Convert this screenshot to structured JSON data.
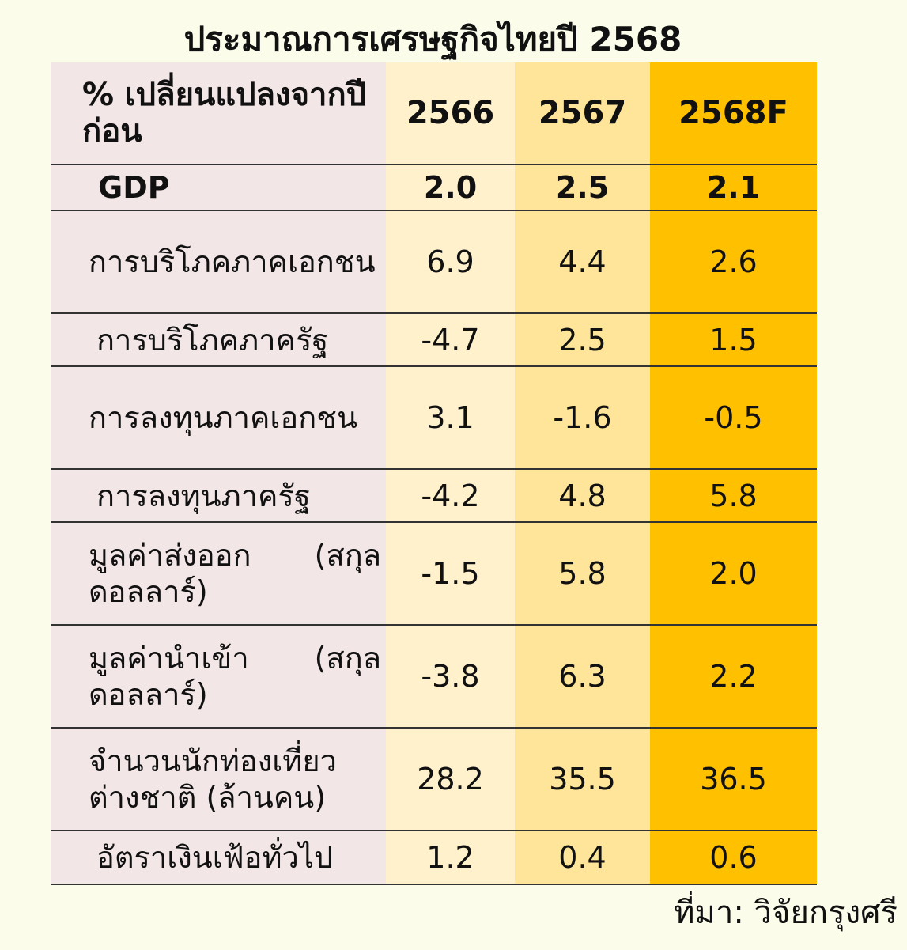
{
  "chart_data": {
    "type": "table",
    "title": "ประมาณการเศรษฐกิจไทยปี 2568",
    "corner_label": "% เปลี่ยนแปลงจากปีก่อน",
    "columns": [
      "2566",
      "2567",
      "2568F"
    ],
    "rows": [
      {
        "label": "GDP",
        "values": [
          "2.0",
          "2.5",
          "2.1"
        ]
      },
      {
        "label": "การบริโภคภาคเอกชน",
        "values": [
          "6.9",
          "4.4",
          "2.6"
        ]
      },
      {
        "label": "การบริโภคภาครัฐ",
        "values": [
          "-4.7",
          "2.5",
          "1.5"
        ]
      },
      {
        "label": "การลงทุนภาคเอกชน",
        "values": [
          "3.1",
          "-1.6",
          "-0.5"
        ]
      },
      {
        "label": "การลงทุนภาครัฐ",
        "values": [
          "-4.2",
          "4.8",
          "5.8"
        ]
      },
      {
        "label": "มูลค่าส่งออก (สกุลดอลลาร์)",
        "values": [
          "-1.5",
          "5.8",
          "2.0"
        ]
      },
      {
        "label": "มูลค่านำเข้า (สกุลดอลลาร์)",
        "values": [
          "-3.8",
          "6.3",
          "2.2"
        ]
      },
      {
        "label": "จำนวนนักท่องเที่ยวต่างชาติ (ล้านคน)",
        "values": [
          "28.2",
          "35.5",
          "36.5"
        ]
      },
      {
        "label": "อัตราเงินเฟ้อทั่วไป",
        "values": [
          "1.2",
          "0.4",
          "0.6"
        ]
      }
    ],
    "source": "ที่มา: วิจัยกรุงศรี",
    "colors": {
      "background": "#fbfce9",
      "label_column": "#f3e6e6",
      "col_2566": "#fff1cc",
      "col_2567": "#fee599",
      "col_2568F": "#ffc000"
    }
  }
}
